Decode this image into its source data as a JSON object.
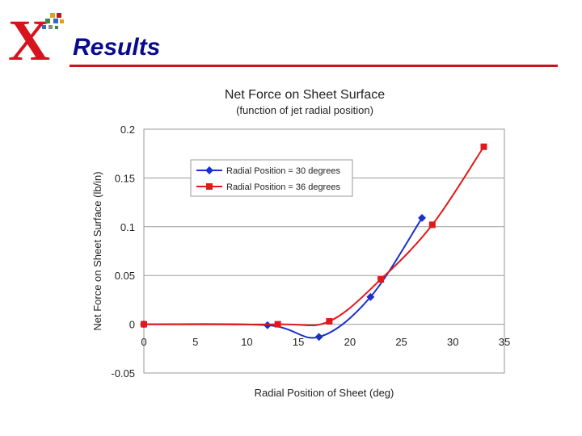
{
  "slide": {
    "title": "Results",
    "logo_letter": "X"
  },
  "colors": {
    "title": "#0a0a8c",
    "rule": "#c8141e",
    "logo": "#d7141e",
    "series_blue": "#1a2fcc",
    "series_red": "#e01a1a"
  },
  "chart_data": {
    "type": "line",
    "title": "Net Force on Sheet Surface",
    "subtitle": "(function of jet radial position)",
    "xlabel": "Radial Position of Sheet (deg)",
    "ylabel": "Net Force on Sheet Surface (lb/in)",
    "xlim": [
      0,
      35
    ],
    "ylim": [
      -0.05,
      0.2
    ],
    "xticks": [
      "0",
      "5",
      "10",
      "15",
      "20",
      "25",
      "30",
      "35"
    ],
    "yticks": [
      "-0.05",
      "0",
      "0.05",
      "0.1",
      "0.15",
      "0.2"
    ],
    "legend_position": "top-left inside",
    "grid": "horizontal",
    "series": [
      {
        "name": "Radial Position = 30 degrees",
        "marker": "diamond",
        "color": "#1a2fcc",
        "x": [
          0,
          12,
          17,
          22,
          27
        ],
        "y": [
          0,
          -0.001,
          -0.013,
          0.028,
          0.109
        ]
      },
      {
        "name": "Radial Position = 36 degrees",
        "marker": "square",
        "color": "#e01a1a",
        "x": [
          0,
          13,
          18,
          23,
          28,
          33
        ],
        "y": [
          0,
          0,
          0.003,
          0.046,
          0.102,
          0.182
        ]
      }
    ]
  }
}
